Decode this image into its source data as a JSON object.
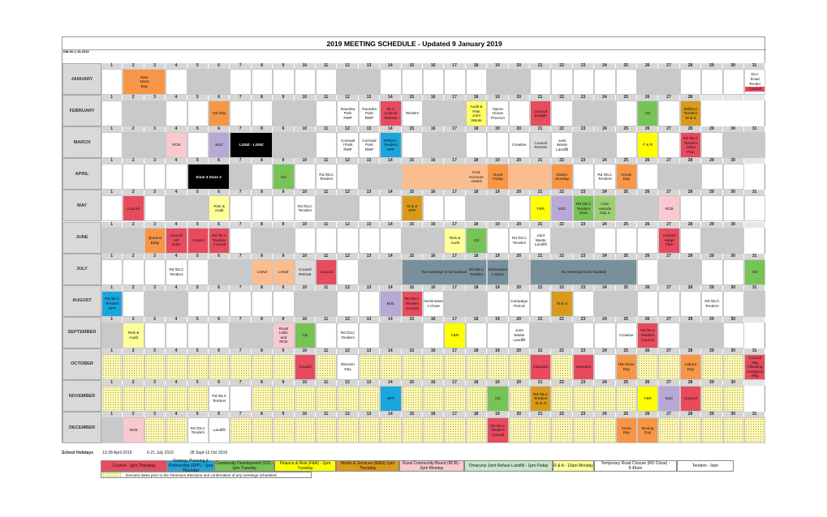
{
  "title": "2019 MEETING SCHEDULE - Updated 9 January 2019",
  "doc_ref": "DM-90-1-19-2019",
  "months": [
    {
      "name": "JANUARY",
      "days": 31,
      "weekends": [
        5,
        6,
        12,
        13,
        19,
        20,
        26,
        27
      ],
      "holiday_pattern": []
    },
    {
      "name": "FEBRUARY",
      "days": 28,
      "weekends": [
        2,
        3,
        9,
        10,
        16,
        17,
        23,
        24
      ],
      "holiday_pattern": []
    },
    {
      "name": "MARCH",
      "days": 31,
      "weekends": [
        2,
        3,
        9,
        10,
        16,
        17,
        23,
        24,
        30,
        31
      ],
      "holiday_pattern": []
    },
    {
      "name": "APRIL",
      "days": 30,
      "weekends": [
        6,
        7,
        13,
        14,
        20,
        21,
        27,
        28
      ],
      "holiday_pattern": []
    },
    {
      "name": "MAY",
      "days": 31,
      "weekends": [
        4,
        5,
        11,
        12,
        18,
        19,
        25,
        26
      ],
      "holiday_pattern": []
    },
    {
      "name": "JUNE",
      "days": 30,
      "weekends": [
        1,
        2,
        8,
        9,
        15,
        16,
        22,
        23,
        29,
        30
      ],
      "holiday_pattern": []
    },
    {
      "name": "JULY",
      "days": 31,
      "weekends": [
        6,
        7,
        13,
        14,
        20,
        21,
        27,
        28
      ],
      "holiday_pattern": []
    },
    {
      "name": "AUGUST",
      "days": 31,
      "weekends": [
        3,
        4,
        10,
        11,
        17,
        18,
        24,
        25,
        31
      ],
      "holiday_pattern": []
    },
    {
      "name": "SEPTEMBER",
      "days": 30,
      "weekends": [
        1,
        7,
        8,
        14,
        15,
        21,
        22,
        28,
        29
      ],
      "holiday_pattern": []
    },
    {
      "name": "OCTOBER",
      "days": 31,
      "weekends": [
        5,
        6,
        12,
        13,
        19,
        20,
        26,
        27
      ],
      "holiday_pattern": [
        1,
        2,
        3,
        4,
        5,
        6,
        7,
        8,
        9,
        11,
        12,
        13,
        14,
        15,
        16,
        17,
        18,
        19,
        20,
        21,
        22,
        25,
        26,
        27,
        29,
        30
      ]
    },
    {
      "name": "NOVEMBER",
      "days": 30,
      "weekends": [
        2,
        3,
        9,
        10,
        16,
        17,
        23,
        24,
        30
      ],
      "holiday_pattern": [
        1,
        2,
        3,
        4,
        5,
        8,
        9,
        10,
        11,
        12,
        13,
        15,
        16,
        17,
        18,
        19,
        20,
        22,
        23,
        24,
        25,
        28,
        29,
        30
      ]
    },
    {
      "name": "DECEMBER",
      "days": 31,
      "weekends": [
        1,
        7,
        8,
        14,
        15,
        21,
        22,
        28,
        29
      ],
      "holiday_pattern": [
        3,
        4,
        5,
        7,
        8,
        9,
        10,
        11,
        12,
        13,
        14,
        15,
        16,
        17,
        18,
        20,
        21,
        22,
        23,
        24,
        27,
        28,
        29,
        30,
        31
      ]
    }
  ],
  "events": [
    {
      "m": 0,
      "d": 2,
      "span": 2,
      "text": [
        "New",
        "Years",
        "Day"
      ],
      "color": "#f79646"
    },
    {
      "m": 0,
      "d": 31,
      "span": 1,
      "text": [
        "DLC",
        "Road",
        "Tender"
      ],
      "color": "#ffffff",
      "bar": "Council"
    },
    {
      "m": 1,
      "d": 6,
      "span": 1,
      "text": [
        "NZ Day"
      ],
      "color": "#f79646"
    },
    {
      "m": 1,
      "d": 12,
      "span": 1,
      "text": [
        "Raureka",
        "Park",
        "RMP"
      ],
      "color": "#ffffff"
    },
    {
      "m": 1,
      "d": 13,
      "span": 1,
      "text": [
        "Raureka",
        "Park",
        "RMP"
      ],
      "color": "#ffffff"
    },
    {
      "m": 1,
      "d": 14,
      "span": 1,
      "text": [
        "DLC",
        "Council",
        "Retreat"
      ],
      "color": "#e84b5e"
    },
    {
      "m": 1,
      "d": 15,
      "span": 1,
      "text": [
        "Tenders"
      ],
      "color": "#ffffff"
    },
    {
      "m": 1,
      "d": 18,
      "span": 1,
      "text": [
        "Audit &",
        "Risk",
        "Joint",
        "Waste"
      ],
      "color": "#ffff66"
    },
    {
      "m": 1,
      "d": 19,
      "span": 1,
      "text": [
        "Opera",
        "House",
        "Precinct"
      ],
      "color": "#ffffff"
    },
    {
      "m": 1,
      "d": 21,
      "span": 1,
      "text": [
        "Council",
        "Budget"
      ],
      "color": "#e84b5e"
    },
    {
      "m": 1,
      "d": 26,
      "span": 1,
      "text": [
        "CD"
      ],
      "color": "#77c355"
    },
    {
      "m": 1,
      "d": 28,
      "span": 1,
      "text": [
        "Rd/DLC",
        "Tenders",
        "W & S"
      ],
      "color": "#d99a1b"
    },
    {
      "m": 2,
      "d": 4,
      "span": 1,
      "text": [
        "RCB"
      ],
      "color": "#f8c9cf"
    },
    {
      "m": 2,
      "d": 6,
      "span": 1,
      "text": [
        "MJC"
      ],
      "color": "#b7a8d6"
    },
    {
      "m": 2,
      "d": 7,
      "span": 2,
      "text": [
        "LGNZ  -  LGNZ"
      ],
      "color": "#000000",
      "fg": "#ffffff"
    },
    {
      "m": 2,
      "d": 12,
      "span": 1,
      "text": [
        "Cornwal",
        "l Park",
        "RMP"
      ],
      "color": "#ffffff"
    },
    {
      "m": 2,
      "d": 13,
      "span": 1,
      "text": [
        "Cornwal",
        "Park",
        "RMP"
      ],
      "color": "#ffffff"
    },
    {
      "m": 2,
      "d": 14,
      "span": 1,
      "text": [
        "Rd/DLC",
        "Tenders",
        "SPP"
      ],
      "color": "#1aa6df"
    },
    {
      "m": 2,
      "d": 20,
      "span": 1,
      "text": [
        "Creative"
      ],
      "color": "#ffffff"
    },
    {
      "m": 2,
      "d": 21,
      "span": 1,
      "text": [
        "Council",
        "Retreat"
      ],
      "color": "#dcdcdc"
    },
    {
      "m": 2,
      "d": 22,
      "span": 1,
      "text": [
        "Joint",
        "Waste",
        "Landfill"
      ],
      "color": "#ffffff"
    },
    {
      "m": 2,
      "d": 26,
      "span": 1,
      "text": [
        "F & R"
      ],
      "color": "#ffff00"
    },
    {
      "m": 2,
      "d": 28,
      "span": 1,
      "text": [
        "Rd /DLC",
        "Tenders",
        "Adopt",
        "Plan"
      ],
      "color": "#e84b5e"
    },
    {
      "m": 3,
      "d": 5,
      "span": 2,
      "text": [
        "Zone 3   Zone 3"
      ],
      "color": "#000000",
      "fg": "#ffffff"
    },
    {
      "m": 3,
      "d": 9,
      "span": 1,
      "text": [
        "CD"
      ],
      "color": "#77c355"
    },
    {
      "m": 3,
      "d": 11,
      "span": 1,
      "text": [
        "Rd /DLC",
        "Tenders"
      ],
      "color": "#ffffff"
    },
    {
      "m": 3,
      "d": 15,
      "span": 7,
      "text": [
        "Civic",
        "Honours",
        "Award"
      ],
      "color": "#fbbd8e"
    },
    {
      "m": 3,
      "d": 19,
      "span": 1,
      "text": [
        "Good",
        "Friday"
      ],
      "color": "#f79646"
    },
    {
      "m": 3,
      "d": 22,
      "span": 1,
      "text": [
        "Easter",
        "Monday"
      ],
      "color": "#f79646"
    },
    {
      "m": 3,
      "d": 24,
      "span": 1,
      "text": [
        "Rd /DLC",
        "Tenders"
      ],
      "color": "#ffffff"
    },
    {
      "m": 3,
      "d": 25,
      "span": 1,
      "text": [
        "Anzac",
        "Day"
      ],
      "color": "#f79646"
    },
    {
      "m": 4,
      "d": 2,
      "span": 1,
      "text": [
        "Council"
      ],
      "color": "#e84b5e"
    },
    {
      "m": 4,
      "d": 6,
      "span": 1,
      "text": [
        "Risk &",
        "Audit"
      ],
      "color": "#ffff99"
    },
    {
      "m": 4,
      "d": 10,
      "span": 1,
      "text": [
        "Rd /DLC",
        "Tenders"
      ],
      "color": "#ffffff"
    },
    {
      "m": 4,
      "d": 15,
      "span": 1,
      "text": [
        "W & S",
        "SPP"
      ],
      "color": "#d99a1b"
    },
    {
      "m": 4,
      "d": 21,
      "span": 1,
      "text": [
        "F&R"
      ],
      "color": "#ffff00"
    },
    {
      "m": 4,
      "d": 22,
      "span": 1,
      "text": [
        "MJC"
      ],
      "color": "#b7a8d6"
    },
    {
      "m": 4,
      "d": 23,
      "span": 1,
      "text": [
        "Rd /DLC",
        "Tenders",
        "Civic"
      ],
      "color": "#77c355"
    },
    {
      "m": 4,
      "d": 24,
      "span": 1,
      "text": [
        "Civic",
        "Awards",
        "Day 2"
      ],
      "color": "#9ccf6f"
    },
    {
      "m": 4,
      "d": 27,
      "span": 1,
      "text": [
        "RCB"
      ],
      "color": "#f8c9cf"
    },
    {
      "m": 5,
      "d": 3,
      "span": 1,
      "text": [
        "Queens",
        "Bday"
      ],
      "color": "#f79646"
    },
    {
      "m": 5,
      "d": 4,
      "span": 1,
      "text": [
        "Council",
        "A/P",
        "Subs"
      ],
      "color": "#e84b5e"
    },
    {
      "m": 5,
      "d": 5,
      "span": 1,
      "text": [
        "Council"
      ],
      "color": "#e84b5e"
    },
    {
      "m": 5,
      "d": 6,
      "span": 1,
      "text": [
        "Rd /DLC",
        "Tenders",
        "Council"
      ],
      "color": "#e84b5e"
    },
    {
      "m": 5,
      "d": 17,
      "span": 1,
      "text": [
        "Risk &",
        "Audit"
      ],
      "color": "#ffff99"
    },
    {
      "m": 5,
      "d": 18,
      "span": 1,
      "text": [
        "CD"
      ],
      "color": "#77c355"
    },
    {
      "m": 5,
      "d": 20,
      "span": 1,
      "text": [
        "Rd /DLC",
        "Tenders"
      ],
      "color": "#ffffff"
    },
    {
      "m": 5,
      "d": 21,
      "span": 1,
      "text": [
        "Joint",
        "Waste",
        "Landfill"
      ],
      "color": "#ffffff"
    },
    {
      "m": 5,
      "d": 27,
      "span": 1,
      "text": [
        "Council",
        "Adopt",
        "Plan"
      ],
      "color": "#e84b5e"
    },
    {
      "m": 6,
      "d": 4,
      "span": 1,
      "text": [
        "Rd /DLC",
        "Tenders"
      ],
      "color": "#ffffff"
    },
    {
      "m": 6,
      "d": 8,
      "span": 1,
      "text": [
        "LGNZ"
      ],
      "color": "#fbbd8e"
    },
    {
      "m": 6,
      "d": 9,
      "span": 1,
      "text": [
        "LGNZ"
      ],
      "color": "#fbbd8e"
    },
    {
      "m": 6,
      "d": 10,
      "span": 1,
      "text": [
        "Council",
        "Retreat"
      ],
      "color": "#dcdcdc"
    },
    {
      "m": 6,
      "d": 11,
      "span": 1,
      "text": [
        "Council"
      ],
      "color": "#e84b5e"
    },
    {
      "m": 6,
      "d": 15,
      "span": 4,
      "text": [
        "No meetings to be booked"
      ],
      "color": "#78909c"
    },
    {
      "m": 6,
      "d": 19,
      "span": 1,
      "text": [
        "Nomination",
        "s Open"
      ],
      "color": "#78909c"
    },
    {
      "m": 6,
      "d": 18,
      "span": 1,
      "text": [
        "Rd /DLC",
        "Tenders"
      ],
      "color": "#78909c"
    },
    {
      "m": 6,
      "d": 21,
      "span": 5,
      "text": [
        "No meetings to be booked"
      ],
      "color": "#78909c"
    },
    {
      "m": 6,
      "d": 31,
      "span": 1,
      "text": [
        "CD"
      ],
      "color": "#77c355"
    },
    {
      "m": 7,
      "d": 1,
      "span": 1,
      "text": [
        "Rd /DLC",
        "Tenders",
        "SPP"
      ],
      "color": "#1aa6df"
    },
    {
      "m": 7,
      "d": 14,
      "span": 1,
      "text": [
        "MJC"
      ],
      "color": "#b7a8d6"
    },
    {
      "m": 7,
      "d": 15,
      "span": 1,
      "text": [
        "Rd /DLC",
        "Tenders",
        "Council"
      ],
      "color": "#e84b5e"
    },
    {
      "m": 7,
      "d": 16,
      "span": 1,
      "text": [
        "Nomination",
        "s Close"
      ],
      "color": "#ffffff"
    },
    {
      "m": 7,
      "d": 20,
      "span": 1,
      "text": [
        "Campaign",
        "Period"
      ],
      "color": "#ffffff"
    },
    {
      "m": 7,
      "d": 22,
      "span": 1,
      "text": [
        "W & S"
      ],
      "color": "#d99a1b"
    },
    {
      "m": 7,
      "d": 29,
      "span": 1,
      "text": [
        "Rd /DLC",
        "Tenders"
      ],
      "color": "#ffffff"
    },
    {
      "m": 8,
      "d": 2,
      "span": 1,
      "text": [
        "Risk &",
        "Audit"
      ],
      "color": "#ffff99"
    },
    {
      "m": 8,
      "d": 9,
      "span": 1,
      "text": [
        "Rural",
        "Halls",
        "and",
        "RCB"
      ],
      "color": "#f8c9cf"
    },
    {
      "m": 8,
      "d": 10,
      "span": 1,
      "text": [
        "CD"
      ],
      "color": "#77c355"
    },
    {
      "m": 8,
      "d": 12,
      "span": 1,
      "text": [
        "Rd /DLC",
        "Tenders"
      ],
      "color": "#ffffff"
    },
    {
      "m": 8,
      "d": 17,
      "span": 1,
      "text": [
        "F&R"
      ],
      "color": "#ffff00"
    },
    {
      "m": 8,
      "d": 20,
      "span": 1,
      "text": [
        "Joint",
        "Waste",
        "Landfill"
      ],
      "color": "#ffffff"
    },
    {
      "m": 8,
      "d": 25,
      "span": 1,
      "text": [
        "Creative"
      ],
      "color": "#ffffff"
    },
    {
      "m": 8,
      "d": 26,
      "span": 1,
      "text": [
        "Rd /DLC",
        "Tenders",
        "Council"
      ],
      "color": "#e84b5e"
    },
    {
      "m": 9,
      "d": 10,
      "span": 1,
      "text": [
        "Council"
      ],
      "color": "#e84b5e"
    },
    {
      "m": 9,
      "d": 12,
      "span": 1,
      "text": [
        "Election",
        "Day"
      ],
      "color": "#ffffff"
    },
    {
      "m": 9,
      "d": 21,
      "span": 1,
      "text": [
        "Induction"
      ],
      "color": "#e84b5e"
    },
    {
      "m": 9,
      "d": 23,
      "span": 1,
      "text": [
        "Induction"
      ],
      "color": "#e84b5e"
    },
    {
      "m": 9,
      "d": 25,
      "span": 1,
      "text": [
        "HB Show",
        "Day"
      ],
      "color": "#f79646"
    },
    {
      "m": 9,
      "d": 28,
      "span": 1,
      "text": [
        "Labour",
        "Day"
      ],
      "color": "#f79646"
    },
    {
      "m": 9,
      "d": 31,
      "span": 1,
      "text": [
        "Council",
        "Mtg",
        "following",
        "Inaugural",
        "Mtg"
      ],
      "color": "#e84b5e"
    },
    {
      "m": 10,
      "d": 6,
      "span": 1,
      "text": [
        "Rd /DLC",
        "Tenders"
      ],
      "color": "#ffffff"
    },
    {
      "m": 10,
      "d": 14,
      "span": 1,
      "text": [
        "SPP"
      ],
      "color": "#1aa6df"
    },
    {
      "m": 10,
      "d": 19,
      "span": 1,
      "text": [
        "CD"
      ],
      "color": "#77c355"
    },
    {
      "m": 10,
      "d": 21,
      "span": 1,
      "text": [
        "Rd /DLC",
        "Tenders",
        "W & S"
      ],
      "color": "#d99a1b"
    },
    {
      "m": 10,
      "d": 26,
      "span": 1,
      "text": [
        "F&R"
      ],
      "color": "#ffff00"
    },
    {
      "m": 10,
      "d": 27,
      "span": 1,
      "text": [
        "MJC"
      ],
      "color": "#b7a8d6"
    },
    {
      "m": 10,
      "d": 28,
      "span": 1,
      "text": [
        "Council"
      ],
      "color": "#e84b5e"
    },
    {
      "m": 11,
      "d": 2,
      "span": 1,
      "text": [
        "RCB"
      ],
      "color": "#f8c9cf"
    },
    {
      "m": 11,
      "d": 5,
      "span": 1,
      "text": [
        "Rd /DLC",
        "Tenders"
      ],
      "color": "#ffffff"
    },
    {
      "m": 11,
      "d": 6,
      "span": 1,
      "text": [
        "Landfill"
      ],
      "color": "#ffffff"
    },
    {
      "m": 11,
      "d": 19,
      "span": 1,
      "text": [
        "Rd /DLC",
        "Tenders",
        "Council"
      ],
      "color": "#e84b5e"
    },
    {
      "m": 11,
      "d": 25,
      "span": 1,
      "text": [
        "Xmas",
        "Day"
      ],
      "color": "#f79646"
    },
    {
      "m": 11,
      "d": 26,
      "span": 1,
      "text": [
        "Boxing",
        "Day"
      ],
      "color": "#f79646"
    }
  ],
  "school_holidays": {
    "label": "School Holidays",
    "periods": [
      "13-28 April 2019",
      "6-21 July 2019",
      "28 Sept-13 Oct 2019"
    ]
  },
  "legend": [
    {
      "text": "Council - 1pm Thursday",
      "color": "#e84b5e"
    },
    {
      "text": "Strategy Planning & Partnership (SPP) - 1pm Thursday",
      "color": "#1aa6df"
    },
    {
      "text": "Community Development (CD) - 1pm Tuesday",
      "color": "#77c355"
    },
    {
      "text": "Finance & Risk (F&R) - 1pm Tuesday",
      "color": "#ffff00"
    },
    {
      "text": "Works & Services (W&S) 1pm Thursday",
      "color": "#d99a1b"
    },
    {
      "text": "Rural Community Board (RCB) - 2pm Monday",
      "color": "#f8c9cf"
    },
    {
      "text": "Omarunui Joint Refuse Landfill - 1pm Friday",
      "color": "#c8e6c9"
    },
    {
      "text": "R & A - 10am Monday",
      "color": "#ffff99"
    },
    {
      "text": "Temporary Road Closure (RD Close) - 8.45am",
      "color": "#ffffff"
    },
    {
      "text": "Tenders - 9am",
      "color": "#ffffff"
    }
  ],
  "legend_note": "Denotes dates prior to the Triennium Elections and confirmation of any meetings scheduled."
}
